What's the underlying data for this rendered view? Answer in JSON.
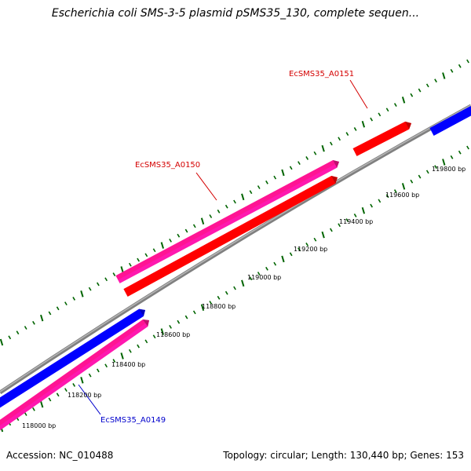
{
  "title": "Escherichia coli SMS-3-5 plasmid pSMS35_130, complete sequen...",
  "footer": {
    "accession": "Accession: NC_010488",
    "summary": "Topology: circular; Length: 130,440 bp; Genes: 153"
  },
  "colors": {
    "forward_cds": "#ff0000",
    "reverse_cds": "#0000ff",
    "gene": "#ff1493",
    "backbone": "#808080",
    "ticks": "#006400",
    "label_red": "#d40000",
    "label_blue": "#0000cc"
  },
  "ticks": [
    {
      "label": "118000 bp"
    },
    {
      "label": "118200 bp"
    },
    {
      "label": "118400 bp"
    },
    {
      "label": "118600 bp"
    },
    {
      "label": "118800 bp"
    },
    {
      "label": "119000 bp"
    },
    {
      "label": "119200 bp"
    },
    {
      "label": "119400 bp"
    },
    {
      "label": "119600 bp"
    },
    {
      "label": "119800 bp"
    }
  ],
  "gene_labels": [
    {
      "name": "EcSMS35_A0151"
    },
    {
      "name": "EcSMS35_A0150"
    },
    {
      "name": "EcSMS35_A0149"
    }
  ]
}
